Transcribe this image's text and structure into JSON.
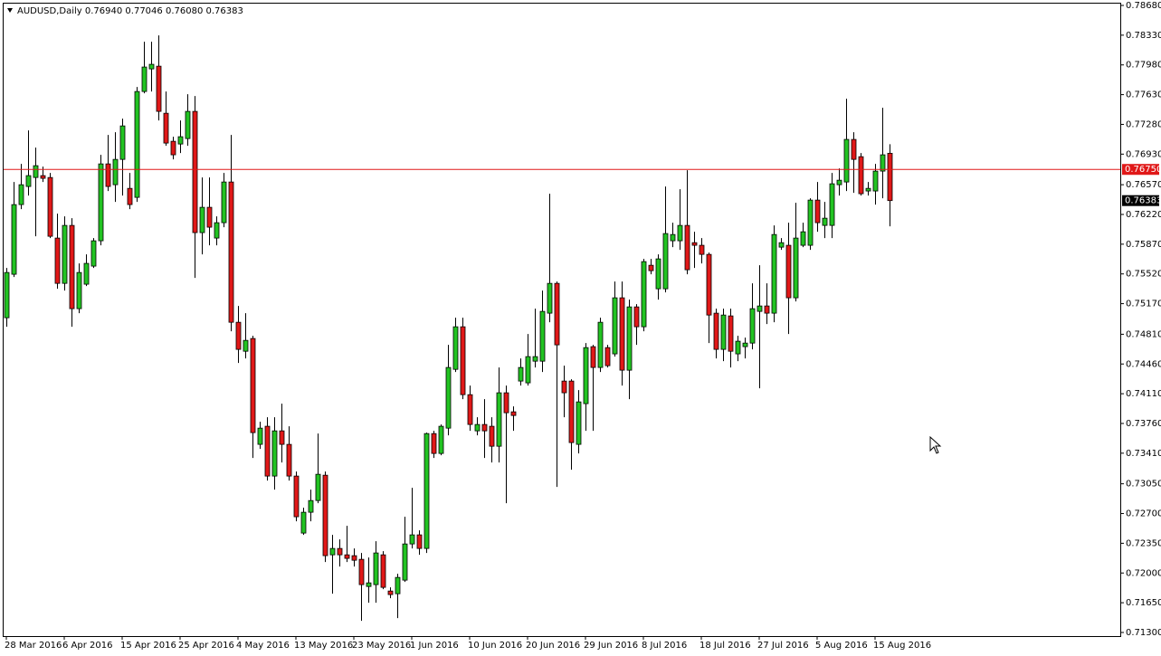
{
  "chart_data": {
    "type": "candlestick",
    "title": "AUDUSD,Daily  0.76940 0.77046 0.76080 0.76383",
    "categories": [
      "28 Mar 2016",
      null,
      null,
      null,
      null,
      null,
      null,
      null,
      "6 Apr 2016",
      null,
      null,
      null,
      null,
      null,
      null,
      null,
      "15 Apr 2016",
      null,
      null,
      null,
      null,
      null,
      null,
      null,
      "25 Apr 2016",
      null,
      null,
      null,
      null,
      null,
      null,
      null,
      "4 May 2016",
      null,
      null,
      null,
      null,
      null,
      null,
      null,
      "13 May 2016",
      null,
      null,
      null,
      null,
      null,
      null,
      null,
      "23 May 2016",
      null,
      null,
      null,
      null,
      null,
      null,
      null,
      "1 Jun 2016",
      null,
      null,
      null,
      null,
      null,
      null,
      null,
      "10 Jun 2016",
      null,
      null,
      null,
      null,
      null,
      null,
      null,
      "20 Jun 2016",
      null,
      null,
      null,
      null,
      null,
      null,
      null,
      "29 Jun 2016",
      null,
      null,
      null,
      null,
      null,
      null,
      null,
      "8 Jul 2016",
      null,
      null,
      null,
      null,
      null,
      null,
      null,
      "18 Jul 2016",
      null,
      null,
      null,
      null,
      null,
      null,
      null,
      "27 Jul 2016",
      null,
      null,
      null,
      null,
      null,
      null,
      null,
      "5 Aug 2016",
      null,
      null,
      null,
      null,
      null,
      null,
      null,
      "15 Aug 2016",
      null,
      null
    ],
    "open": [
      0.75004,
      0.75516,
      0.76336,
      0.76549,
      0.76655,
      0.76677,
      0.76655,
      0.75942,
      0.75409,
      0.76091,
      0.75111,
      0.75399,
      0.75612,
      0.7591,
      0.76815,
      0.7657,
      0.76868,
      0.76527,
      0.76421,
      0.77667,
      0.77933,
      0.77965,
      0.77411,
      0.77081,
      0.77049,
      0.77113,
      0.77433,
      0.76006,
      0.76304,
      0.75942,
      0.76123,
      0.76602,
      0.74951,
      0.7461,
      0.7476,
      0.73514,
      0.73727,
      0.73141,
      0.73673,
      0.73514,
      0.73141,
      0.7247,
      0.72715,
      0.72853,
      0.73151,
      0.72214,
      0.72289,
      0.72214,
      0.72204,
      0.72161,
      0.71841,
      0.71863,
      0.72214,
      0.71788,
      0.71756,
      0.71916,
      0.72342,
      0.72449,
      0.72289,
      0.73641,
      0.73407,
      0.73705,
      0.74397,
      0.74898,
      0.74099,
      0.73673,
      0.73748,
      0.73727,
      0.73492,
      0.74121,
      0.73897,
      0.74259,
      0.74238,
      0.74493,
      0.74493,
      0.75058,
      0.75409,
      0.74259,
      0.74259,
      0.73514,
      0.73993,
      0.74664,
      0.74419,
      0.74653,
      0.74579,
      0.75239,
      0.74387,
      0.75132,
      0.74898,
      0.75622,
      0.75345,
      0.75345,
      0.7591,
      0.7591,
      0.76091,
      0.75888,
      0.75857,
      0.7575,
      0.75058,
      0.74632,
      0.75026,
      0.74579,
      0.74664,
      0.74706,
      0.75079,
      0.75143,
      0.75058,
      0.75835,
      0.75857,
      0.75239,
      0.75857,
      0.75857,
      0.76389,
      0.76091,
      0.76091,
      0.7657,
      0.76602,
      0.77103,
      0.769,
      0.76496,
      0.76496,
      0.7673,
      0.7694
    ],
    "high": [
      0.7559,
      0.76602,
      0.76815,
      0.77209,
      0.77007,
      0.76783,
      0.76709,
      0.76229,
      0.76197,
      0.76176,
      0.75644,
      0.7575,
      0.75942,
      0.76922,
      0.77156,
      0.77188,
      0.77348,
      0.76709,
      0.7772,
      0.78253,
      0.78253,
      0.78327,
      0.77667,
      0.77135,
      0.77326,
      0.77635,
      0.77614,
      0.76655,
      0.76655,
      0.76197,
      0.76709,
      0.77156,
      0.75143,
      0.75058,
      0.74792,
      0.7378,
      0.73833,
      0.73833,
      0.73993,
      0.73727,
      0.73194,
      0.72768,
      0.72981,
      0.73641,
      0.73194,
      0.72449,
      0.72395,
      0.72555,
      0.72289,
      0.72236,
      0.72182,
      0.72374,
      0.72257,
      0.71831,
      0.71991,
      0.72662,
      0.73002,
      0.72502,
      0.73652,
      0.73673,
      0.73748,
      0.74685,
      0.75005,
      0.75005,
      0.74206,
      0.73833,
      0.74046,
      0.73833,
      0.74419,
      0.74206,
      0.73961,
      0.74525,
      0.74813,
      0.75111,
      0.75324,
      0.76464,
      0.75431,
      0.7444,
      0.7428,
      0.74153,
      0.74706,
      0.74685,
      0.75005,
      0.74685,
      0.75431,
      0.75431,
      0.75218,
      0.75164,
      0.75697,
      0.75697,
      0.7575,
      0.76549,
      0.76123,
      0.76517,
      0.7674,
      0.76016,
      0.75942,
      0.75771,
      0.75111,
      0.75111,
      0.75111,
      0.74792,
      0.7477,
      0.75409,
      0.75622,
      0.75409,
      0.76091,
      0.75942,
      0.76123,
      0.76357,
      0.76123,
      0.7641,
      0.76602,
      0.76368,
      0.76709,
      0.76762,
      0.77582,
      0.77188,
      0.76943,
      0.76602,
      0.76815,
      0.77475,
      0.77046
    ],
    "low": [
      0.74898,
      0.75484,
      0.76283,
      0.76442,
      0.75963,
      0.76602,
      0.75942,
      0.75345,
      0.75324,
      0.74898,
      0.75058,
      0.75377,
      0.7559,
      0.75857,
      0.76496,
      0.76368,
      0.76442,
      0.76283,
      0.76368,
      0.77646,
      0.77667,
      0.77326,
      0.77028,
      0.76868,
      0.76943,
      0.77028,
      0.75473,
      0.7575,
      0.75857,
      0.75857,
      0.7607,
      0.74845,
      0.74472,
      0.74525,
      0.73354,
      0.7346,
      0.73088,
      0.72981,
      0.73301,
      0.73088,
      0.72608,
      0.72449,
      0.72608,
      0.72821,
      0.72129,
      0.71756,
      0.72076,
      0.72129,
      0.72076,
      0.71437,
      0.7165,
      0.7165,
      0.7181,
      0.71703,
      0.71469,
      0.71895,
      0.72289,
      0.72214,
      0.72236,
      0.73354,
      0.73386,
      0.7362,
      0.74366,
      0.74046,
      0.73673,
      0.7362,
      0.73354,
      0.73301,
      0.73301,
      0.72821,
      0.73673,
      0.74206,
      0.74206,
      0.74419,
      0.74366,
      0.74951,
      0.73013,
      0.73833,
      0.73215,
      0.73407,
      0.73673,
      0.73673,
      0.74366,
      0.74419,
      0.74547,
      0.74206,
      0.74046,
      0.74685,
      0.74845,
      0.75516,
      0.75218,
      0.75303,
      0.75835,
      0.75803,
      0.75516,
      0.7559,
      0.75644,
      0.74706,
      0.74525,
      0.74493,
      0.74419,
      0.74493,
      0.74525,
      0.74632,
      0.74174,
      0.7493,
      0.74951,
      0.75803,
      0.74813,
      0.75196,
      0.75835,
      0.75803,
      0.76016,
      0.75942,
      0.75942,
      0.76442,
      0.76496,
      0.76474,
      0.76442,
      0.76442,
      0.76336,
      0.7641,
      0.7608
    ],
    "close": [
      0.75537,
      0.76336,
      0.7657,
      0.76677,
      0.76794,
      0.76645,
      0.75963,
      0.75409,
      0.76091,
      0.75111,
      0.75537,
      0.75644,
      0.7591,
      0.76815,
      0.76549,
      0.76868,
      0.77262,
      0.76336,
      0.77667,
      0.77955,
      0.77987,
      0.77433,
      0.7706,
      0.76922,
      0.77135,
      0.77433,
      0.76006,
      0.76304,
      0.7607,
      0.76123,
      0.76602,
      0.74951,
      0.74632,
      0.74738,
      0.73652,
      0.73705,
      0.73141,
      0.73673,
      0.73514,
      0.73141,
      0.72662,
      0.72715,
      0.72853,
      0.73162,
      0.72204,
      0.72289,
      0.72214,
      0.72172,
      0.7215,
      0.71863,
      0.71884,
      0.72236,
      0.71831,
      0.71746,
      0.71948,
      0.72342,
      0.72449,
      0.72289,
      0.73641,
      0.73407,
      0.73727,
      0.74419,
      0.74898,
      0.74099,
      0.73748,
      0.73748,
      0.73673,
      0.73492,
      0.74121,
      0.73886,
      0.73854,
      0.74419,
      0.74547,
      0.74547,
      0.75079,
      0.75409,
      0.74685,
      0.74121,
      0.73535,
      0.74014,
      0.74653,
      0.74419,
      0.74951,
      0.7444,
      0.75239,
      0.74387,
      0.75132,
      0.74898,
      0.75665,
      0.75558,
      0.75697,
      0.75995,
      0.75984,
      0.76091,
      0.75569,
      0.75857,
      0.7575,
      0.75036,
      0.74632,
      0.75036,
      0.7461,
      0.74728,
      0.74706,
      0.75111,
      0.75143,
      0.75058,
      0.75984,
      0.75888,
      0.75239,
      0.75942,
      0.76016,
      0.76389,
      0.76123,
      0.76176,
      0.76581,
      0.76623,
      0.77103,
      0.76868,
      0.76464,
      0.76527,
      0.7673,
      0.76922,
      0.76383
    ],
    "up_color": "#22c322",
    "down_color": "#e01818",
    "ylim": [
      0.713,
      0.7868
    ],
    "yticks": [
      {
        "value": 0.713,
        "label": "0.71300"
      },
      {
        "value": 0.7165,
        "label": "0.71650"
      },
      {
        "value": 0.72,
        "label": "0.72000"
      },
      {
        "value": 0.7235,
        "label": "0.72350"
      },
      {
        "value": 0.727,
        "label": "0.72700"
      },
      {
        "value": 0.7305,
        "label": "0.73050"
      },
      {
        "value": 0.7341,
        "label": "0.73410"
      },
      {
        "value": 0.7376,
        "label": "0.73760"
      },
      {
        "value": 0.7411,
        "label": "0.74110"
      },
      {
        "value": 0.7446,
        "label": "0.74460"
      },
      {
        "value": 0.7481,
        "label": "0.74810"
      },
      {
        "value": 0.7517,
        "label": "0.75170"
      },
      {
        "value": 0.7552,
        "label": "0.75520"
      },
      {
        "value": 0.7587,
        "label": "0.75870"
      },
      {
        "value": 0.7622,
        "label": "0.76220"
      },
      {
        "value": 0.7657,
        "label": "0.76570"
      },
      {
        "value": 0.7693,
        "label": "0.76930"
      },
      {
        "value": 0.7728,
        "label": "0.77280"
      },
      {
        "value": 0.7763,
        "label": "0.77630"
      },
      {
        "value": 0.7798,
        "label": "0.77980"
      },
      {
        "value": 0.7833,
        "label": "0.78330"
      },
      {
        "value": 0.7868,
        "label": "0.78680"
      }
    ],
    "grid": false,
    "price_line": {
      "value": 0.7675,
      "label": "0.76750",
      "color": "#e01818"
    },
    "current_price": {
      "value": 0.76383,
      "label": "0.76383",
      "color": "#000000"
    }
  }
}
